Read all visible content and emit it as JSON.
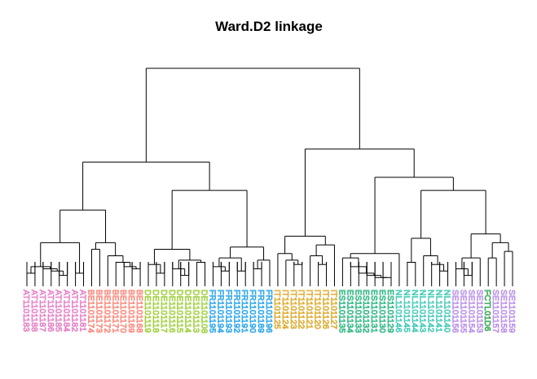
{
  "chart_data": {
    "type": "dendrogram",
    "title": "Ward.D2 linkage",
    "colors": {
      "AT": "#e377c2",
      "BE": "#fa8072",
      "DE": "#9acd32",
      "FR": "#1ea0e8",
      "IT": "#daa520",
      "ES": "#20b27a",
      "NL": "#3cc8b4",
      "SE": "#b589e8",
      "FC": "#2aa34a"
    },
    "leaves": [
      {
        "label": "AT1101183",
        "group": "AT"
      },
      {
        "label": "AT1101188",
        "group": "AT"
      },
      {
        "label": "AT1101187",
        "group": "AT"
      },
      {
        "label": "AT1101186",
        "group": "AT"
      },
      {
        "label": "AT1101185",
        "group": "AT"
      },
      {
        "label": "AT1101184",
        "group": "AT"
      },
      {
        "label": "AT1101182",
        "group": "AT"
      },
      {
        "label": "AT1101181",
        "group": "AT"
      },
      {
        "label": "BE1101174",
        "group": "BE"
      },
      {
        "label": "BE1101173",
        "group": "BE"
      },
      {
        "label": "BE1101172",
        "group": "BE"
      },
      {
        "label": "BE1101171",
        "group": "BE"
      },
      {
        "label": "BE1101170",
        "group": "BE"
      },
      {
        "label": "BE1101169",
        "group": "BE"
      },
      {
        "label": "BE1101168",
        "group": "BE"
      },
      {
        "label": "DE1101119",
        "group": "DE"
      },
      {
        "label": "DE1101118",
        "group": "DE"
      },
      {
        "label": "DE1101117",
        "group": "DE"
      },
      {
        "label": "DE1101116",
        "group": "DE"
      },
      {
        "label": "DE1101115",
        "group": "DE"
      },
      {
        "label": "DE1101114",
        "group": "DE"
      },
      {
        "label": "DE1101113",
        "group": "DE"
      },
      {
        "label": "DE1101108",
        "group": "DE"
      },
      {
        "label": "FR1101195",
        "group": "FR"
      },
      {
        "label": "FR1101194",
        "group": "FR"
      },
      {
        "label": "FR1101193",
        "group": "FR"
      },
      {
        "label": "FR1101192",
        "group": "FR"
      },
      {
        "label": "FR1101191",
        "group": "FR"
      },
      {
        "label": "FR1101190",
        "group": "FR"
      },
      {
        "label": "FR1101189",
        "group": "FR"
      },
      {
        "label": "FR1101196",
        "group": "FR"
      },
      {
        "label": "IT1101125",
        "group": "IT"
      },
      {
        "label": "IT1101124",
        "group": "IT"
      },
      {
        "label": "IT1101123",
        "group": "IT"
      },
      {
        "label": "IT1101122",
        "group": "IT"
      },
      {
        "label": "IT1101121",
        "group": "IT"
      },
      {
        "label": "IT1101120",
        "group": "IT"
      },
      {
        "label": "IT1101126",
        "group": "IT"
      },
      {
        "label": "IT1101127",
        "group": "IT"
      },
      {
        "label": "ES1101135",
        "group": "ES"
      },
      {
        "label": "ES1101134",
        "group": "ES"
      },
      {
        "label": "ES1101133",
        "group": "ES"
      },
      {
        "label": "ES1101132",
        "group": "ES"
      },
      {
        "label": "ES1101131",
        "group": "ES"
      },
      {
        "label": "ES1101130",
        "group": "ES"
      },
      {
        "label": "ES1101129",
        "group": "ES"
      },
      {
        "label": "NL1101146",
        "group": "NL"
      },
      {
        "label": "NL1101145",
        "group": "NL"
      },
      {
        "label": "NL1101144",
        "group": "NL"
      },
      {
        "label": "NL1101143",
        "group": "NL"
      },
      {
        "label": "NL1101142",
        "group": "NL"
      },
      {
        "label": "NL1101141",
        "group": "NL"
      },
      {
        "label": "NL1101140",
        "group": "NL"
      },
      {
        "label": "SE1101156",
        "group": "SE"
      },
      {
        "label": "SE1101155",
        "group": "SE"
      },
      {
        "label": "SE1101154",
        "group": "SE"
      },
      {
        "label": "SE1101153",
        "group": "SE"
      },
      {
        "label": "FCTL01D6",
        "group": "FC"
      },
      {
        "label": "SE1101157",
        "group": "SE"
      },
      {
        "label": "SE1101158",
        "group": "SE"
      },
      {
        "label": "SE1101159",
        "group": "SE"
      }
    ],
    "tree": {
      "h": 100,
      "c": [
        {
          "h": 57,
          "c": [
            {
              "h": 35,
              "c": [
                {
                  "h": 20,
                  "c": [
                    {
                      "h": 9,
                      "c": [
                        {
                          "h": 6,
                          "c": [
                            0,
                            1
                          ]
                        },
                        {
                          "h": 8,
                          "c": [
                            2,
                            {
                              "h": 7,
                              "c": [
                                3,
                                {
                                  "h": 5,
                                  "c": [
                                    4,
                                    5
                                  ]
                                }
                              ]
                            }
                          ]
                        }
                      ]
                    },
                    {
                      "h": 6,
                      "c": [
                        6,
                        7
                      ]
                    }
                  ]
                },
                {
                  "h": 20,
                  "c": [
                    {
                      "h": 17,
                      "c": [
                        8,
                        9
                      ]
                    },
                    {
                      "h": 14,
                      "c": [
                        10,
                        {
                          "h": 11,
                          "c": [
                            11,
                            {
                              "h": 9,
                              "c": [
                                12,
                                {
                                  "h": 8,
                                  "c": [
                                    13,
                                    14
                                  ]
                                }
                              ]
                            }
                          ]
                        }
                      ]
                    }
                  ]
                }
              ]
            },
            {
              "h": 44,
              "c": [
                {
                  "h": 17,
                  "c": [
                    {
                      "h": 10,
                      "c": [
                        15,
                        {
                          "h": 6,
                          "c": [
                            16,
                            17
                          ]
                        }
                      ]
                    },
                    {
                      "h": 12,
                      "c": [
                        {
                          "h": 8,
                          "c": [
                            18,
                            {
                              "h": 5,
                              "c": [
                                19,
                                20
                              ]
                            }
                          ]
                        },
                        {
                          "h": 11,
                          "c": [
                            21,
                            22
                          ]
                        }
                      ]
                    }
                  ]
                },
                {
                  "h": 18,
                  "c": [
                    {
                      "h": 13,
                      "c": [
                        {
                          "h": 9,
                          "c": [
                            23,
                            {
                              "h": 7,
                              "c": [
                                24,
                                25
                              ]
                            }
                          ]
                        },
                        {
                          "h": 7,
                          "c": [
                            26,
                            27
                          ]
                        }
                      ]
                    },
                    {
                      "h": 12,
                      "c": [
                        {
                          "h": 8,
                          "c": [
                            28,
                            29
                          ]
                        },
                        30
                      ]
                    }
                  ]
                }
              ]
            }
          ]
        },
        {
          "h": 63,
          "c": [
            {
              "h": 23,
              "c": [
                {
                  "h": 15,
                  "c": [
                    31,
                    {
                      "h": 12,
                      "c": [
                        32,
                        {
                          "h": 10,
                          "c": [
                            33,
                            34
                          ]
                        }
                      ]
                    }
                  ]
                },
                {
                  "h": 19,
                  "c": [
                    {
                      "h": 14,
                      "c": [
                        35,
                        {
                          "h": 10,
                          "c": [
                            36,
                            37
                          ]
                        }
                      ]
                    },
                    38
                  ]
                }
              ]
            },
            {
              "h": 50,
              "c": [
                {
                  "h": 15,
                  "c": [
                    {
                      "h": 13,
                      "c": [
                        39,
                        {
                          "h": 9,
                          "c": [
                            40,
                            {
                              "h": 6,
                              "c": [
                                41,
                                {
                                  "h": 5,
                                  "c": [
                                    42,
                                    {
                                      "h": 4,
                                      "c": [
                                        43,
                                        {
                                          "h": 4,
                                          "c": [
                                            44,
                                            45
                                          ]
                                        }
                                      ]
                                    }
                                  ]
                                }
                              ]
                            }
                          ]
                        }
                      ]
                    },
                    46
                  ]
                },
                {
                  "h": 44,
                  "c": [
                    {
                      "h": 22,
                      "c": [
                        {
                          "h": 11,
                          "c": [
                            47,
                            48
                          ]
                        },
                        {
                          "h": 14,
                          "c": [
                            49,
                            {
                              "h": 10,
                              "c": [
                                50,
                                {
                                  "h": 7,
                                  "c": [
                                    51,
                                    52
                                  ]
                                }
                              ]
                            }
                          ]
                        }
                      ]
                    },
                    {
                      "h": 24,
                      "c": [
                        {
                          "h": 13,
                          "c": [
                            {
                              "h": 8,
                              "c": [
                                53,
                                {
                                  "h": 5,
                                  "c": [
                                    54,
                                    55
                                  ]
                                }
                              ]
                            },
                            56
                          ]
                        },
                        {
                          "h": 20,
                          "c": [
                            {
                              "h": 13,
                              "c": [
                                57,
                                58
                              ]
                            },
                            {
                              "h": 16,
                              "c": [
                                59,
                                60
                              ]
                            }
                          ]
                        }
                      ]
                    }
                  ]
                }
              ]
            }
          ]
        }
      ]
    }
  }
}
